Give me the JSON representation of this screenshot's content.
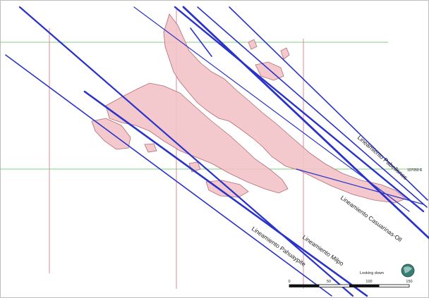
{
  "map": {
    "lineaments": [
      {
        "name": "Lineamiento Pabellones",
        "label": "Lineamiento Pabellones"
      },
      {
        "name": "Lineamiento Casuarinas-Oll",
        "label": "Lineamiento Casuarinas-Oll"
      },
      {
        "name": "Lineamiento Milpo",
        "label": "Lineamiento Milpo"
      },
      {
        "name": "Lineamiento Pahuaypite",
        "label": "Lineamiento Pahuaypite"
      }
    ],
    "grid_labels": {
      "gridline_label": "107050 E"
    },
    "compass_label": "Looking down",
    "scale_bar": {
      "ticks": [
        "0",
        "50",
        "100",
        "150"
      ]
    },
    "colors": {
      "lineament": "#2a33c8",
      "ore_body_fill": "#f2c3c8",
      "ore_body_stroke": "#b46a74",
      "grid_green": "#7fd07f",
      "grid_red": "#e08a96",
      "compass": "#3b7d75"
    }
  }
}
